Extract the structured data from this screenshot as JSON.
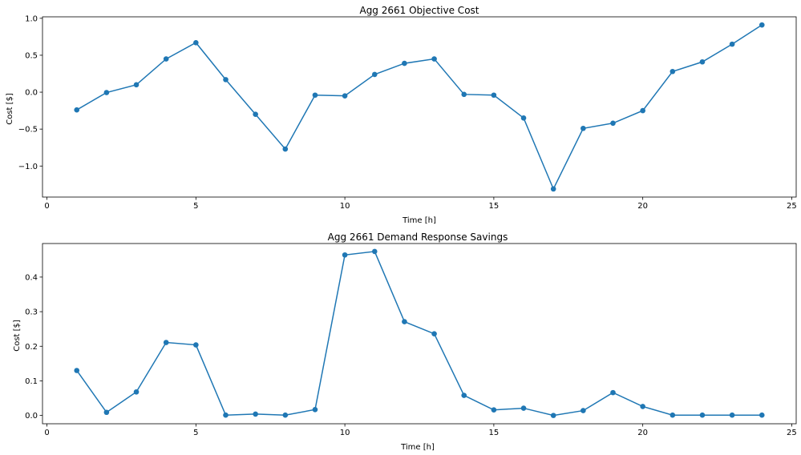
{
  "chart_data": [
    {
      "type": "line",
      "title": "Agg 2661 Objective Cost",
      "xlabel": "Time [h]",
      "ylabel": "Cost [$]",
      "xlim": [
        -0.15,
        25.15
      ],
      "ylim": [
        -1.42,
        1.02
      ],
      "xticks": [
        0,
        5,
        10,
        15,
        20,
        25
      ],
      "yticks": [
        -1.0,
        -0.5,
        0.0,
        0.5,
        1.0
      ],
      "ytick_labels": [
        "−1.0",
        "−0.5",
        "0.0",
        "0.5",
        "1.0"
      ],
      "grid": false,
      "color": "#1f77b4",
      "x": [
        1,
        2,
        3,
        4,
        5,
        6,
        7,
        8,
        9,
        10,
        11,
        12,
        13,
        14,
        15,
        16,
        17,
        18,
        19,
        20,
        21,
        22,
        23,
        24
      ],
      "y": [
        -0.24,
        -0.005,
        0.1,
        0.45,
        0.67,
        0.17,
        -0.3,
        -0.77,
        -0.04,
        -0.05,
        0.24,
        0.39,
        0.45,
        -0.03,
        -0.04,
        -0.35,
        -1.31,
        -0.49,
        -0.42,
        -0.25,
        0.28,
        0.41,
        0.65,
        0.91
      ]
    },
    {
      "type": "line",
      "title": "Agg 2661 Demand Response Savings",
      "xlabel": "Time [h]",
      "ylabel": "Cost [$]",
      "xlim": [
        -0.15,
        25.15
      ],
      "ylim": [
        -0.024,
        0.497
      ],
      "xticks": [
        0,
        5,
        10,
        15,
        20,
        25
      ],
      "yticks": [
        0.0,
        0.1,
        0.2,
        0.3,
        0.4
      ],
      "ytick_labels": [
        "0.0",
        "0.1",
        "0.2",
        "0.3",
        "0.4"
      ],
      "grid": false,
      "color": "#1f77b4",
      "x": [
        1,
        2,
        3,
        4,
        5,
        6,
        7,
        8,
        9,
        10,
        11,
        12,
        13,
        14,
        15,
        16,
        17,
        18,
        19,
        20,
        21,
        22,
        23,
        24
      ],
      "y": [
        0.13,
        0.009,
        0.068,
        0.211,
        0.204,
        0.001,
        0.004,
        0.001,
        0.017,
        0.464,
        0.474,
        0.271,
        0.236,
        0.058,
        0.016,
        0.021,
        0.0,
        0.014,
        0.066,
        0.026,
        0.001,
        0.001,
        0.001,
        0.001
      ]
    }
  ]
}
